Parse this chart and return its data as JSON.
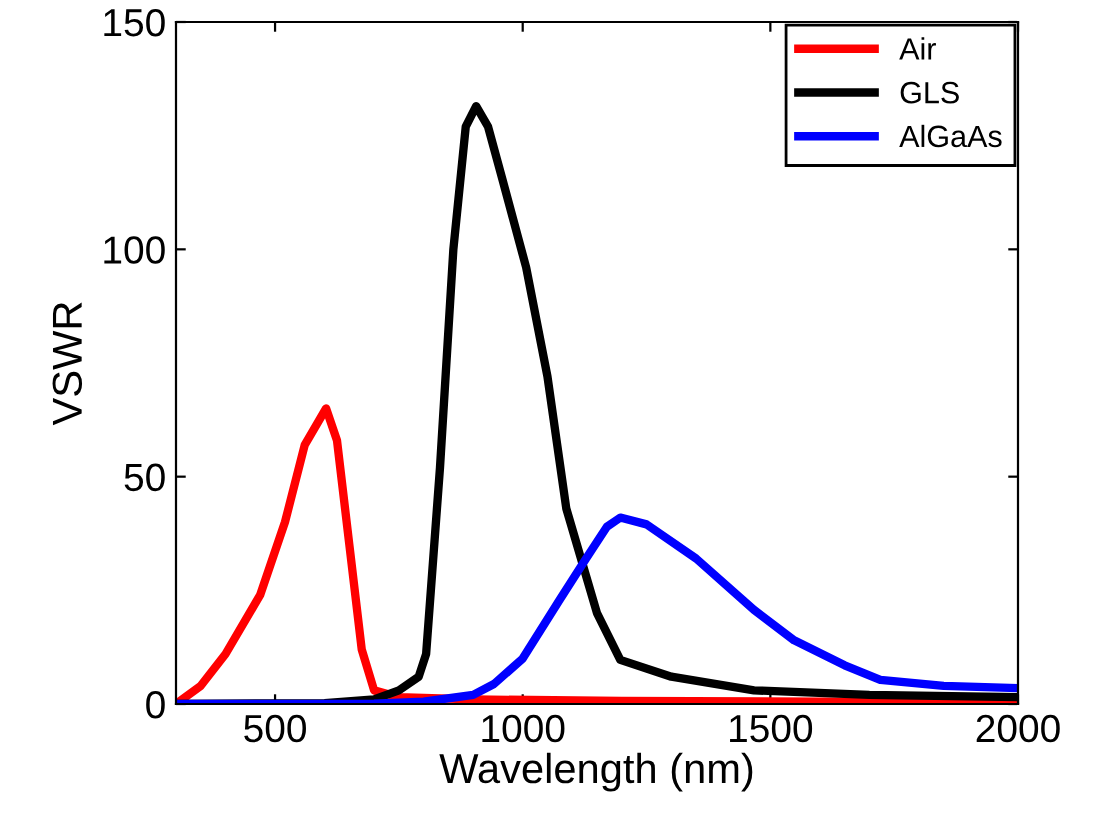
{
  "chart_data": {
    "type": "line",
    "xlabel": "Wavelength (nm)",
    "ylabel": "VSWR",
    "xlim": [
      300,
      2000
    ],
    "ylim": [
      0,
      150
    ],
    "xticks": [
      500,
      1000,
      1500,
      2000
    ],
    "yticks": [
      0,
      50,
      100,
      150
    ],
    "grid": false,
    "legend": "top right",
    "line_style": "solid",
    "marker": "none",
    "series": [
      {
        "name": "Air",
        "color": "#ff0000",
        "x": [
          300,
          350,
          400,
          470,
          520,
          560,
          603,
          625,
          650,
          675,
          700,
          750,
          900,
          1200,
          1600,
          2000
        ],
        "values": [
          0,
          4,
          11,
          24,
          40,
          57,
          65,
          58,
          35,
          12,
          3,
          1.5,
          1,
          0.7,
          0.5,
          0.4
        ]
      },
      {
        "name": "GLS",
        "color": "#000000",
        "x": [
          300,
          600,
          700,
          750,
          790,
          805,
          833,
          860,
          885,
          906,
          930,
          960,
          1007,
          1050,
          1088,
          1150,
          1197,
          1300,
          1467,
          1700,
          2000
        ],
        "values": [
          0,
          0.2,
          1,
          3,
          6,
          11,
          52,
          100,
          127,
          131.5,
          127,
          115,
          96,
          72,
          43,
          20,
          9.7,
          6,
          3,
          2,
          1.5
        ]
      },
      {
        "name": "AlGaAs",
        "color": "#0000ff",
        "x": [
          300,
          700,
          800,
          900,
          942,
          1000,
          1075,
          1128,
          1170,
          1197,
          1250,
          1350,
          1467,
          1548,
          1650,
          1722,
          1850,
          2000
        ],
        "values": [
          0,
          0.1,
          0.5,
          2,
          4.4,
          10,
          23,
          32,
          39,
          41,
          39.5,
          32,
          20.7,
          14,
          8.5,
          5.3,
          4,
          3.5
        ]
      }
    ]
  }
}
